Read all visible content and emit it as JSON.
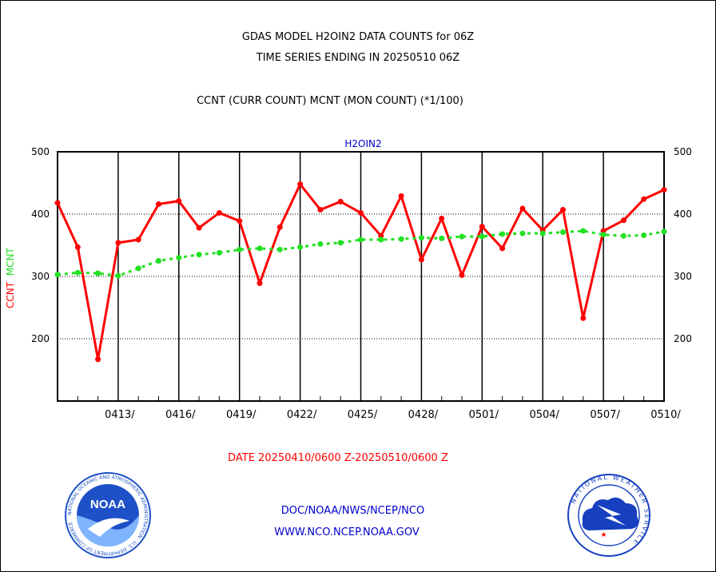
{
  "chart_data": {
    "type": "line",
    "title_lines": [
      "GDAS MODEL H2OIN2 DATA COUNTS for 06Z",
      "TIME SERIES ENDING IN 20250510 06Z",
      "CCNT (CURR COUNT) MCNT (MON COUNT) (*1/100)"
    ],
    "plot_label": "H2OIN2",
    "ylabel_ccnt": "CCNT",
    "ylabel_mcnt": "MCNT",
    "xlabel": "DATE 20250410/0600 Z-20250510/0600 Z",
    "ylim": [
      100,
      500
    ],
    "yticks": [
      200,
      300,
      400,
      500
    ],
    "y_grid": [
      200,
      300,
      400
    ],
    "x_days": [
      "0410",
      "0411",
      "0412",
      "0413",
      "0414",
      "0415",
      "0416",
      "0417",
      "0418",
      "0419",
      "0420",
      "0421",
      "0422",
      "0423",
      "0424",
      "0425",
      "0426",
      "0427",
      "0428",
      "0429",
      "0430",
      "0501",
      "0502",
      "0503",
      "0504",
      "0505",
      "0506",
      "0507",
      "0508",
      "0509",
      "0510"
    ],
    "x_tick_labels": [
      "0413/",
      "0416/",
      "0419/",
      "0422/",
      "0425/",
      "0428/",
      "0501/",
      "0504/",
      "0507/",
      "0510/"
    ],
    "series": [
      {
        "name": "CCNT",
        "color": "#ff0000",
        "style": "solid",
        "values": [
          418,
          347,
          167,
          354,
          359,
          416,
          421,
          378,
          402,
          389,
          289,
          379,
          448,
          407,
          420,
          402,
          365,
          429,
          327,
          393,
          302,
          380,
          345,
          409,
          374,
          407,
          233,
          373,
          390,
          424,
          439
        ]
      },
      {
        "name": "MCNT",
        "color": "#22e022",
        "style": "dashed",
        "values": [
          303,
          306,
          305,
          301,
          313,
          325,
          330,
          335,
          338,
          343,
          345,
          343,
          347,
          352,
          354,
          359,
          359,
          360,
          362,
          361,
          364,
          364,
          368,
          369,
          369,
          371,
          373,
          367,
          365,
          366,
          372
        ]
      }
    ]
  },
  "footer": {
    "line1": "DOC/NOAA/NWS/NCEP/NCO",
    "line2": "WWW.NCO.NCEP.NOAA.GOV"
  },
  "logos": {
    "noaa_text": "NOAA",
    "noaa_ring_text": "NATIONAL OCEANIC AND ATMOSPHERIC ADMINISTRATION · U.S. DEPARTMENT OF COMMERCE",
    "nws_ring_text": "NATIONAL WEATHER SERVICE"
  },
  "colors": {
    "ccnt": "#ff0000",
    "mcnt": "#22e022",
    "footer": "#0000cc",
    "plot_label": "#0000cc",
    "noaa_blue": "#1e50c8",
    "nws_blue": "#1640c0"
  }
}
